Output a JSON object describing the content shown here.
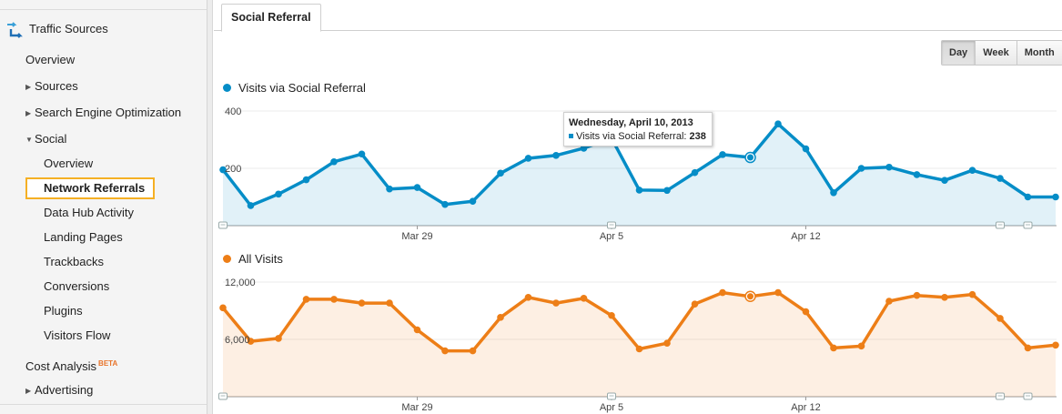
{
  "sidebar": {
    "section_title": "Traffic Sources",
    "items": [
      {
        "label": "Overview"
      },
      {
        "label": "Sources"
      },
      {
        "label": "Search Engine Optimization"
      },
      {
        "label": "Social"
      }
    ],
    "social_items": [
      {
        "label": "Overview"
      },
      {
        "label": "Network Referrals"
      },
      {
        "label": "Data Hub Activity"
      },
      {
        "label": "Landing Pages"
      },
      {
        "label": "Trackbacks"
      },
      {
        "label": "Conversions"
      },
      {
        "label": "Plugins"
      },
      {
        "label": "Visitors Flow"
      }
    ],
    "cost_analysis": {
      "label": "Cost Analysis",
      "badge": "BETA"
    },
    "advertising": {
      "label": "Advertising"
    }
  },
  "tabs": [
    {
      "label": "Social Referral"
    }
  ],
  "granularity": {
    "options": [
      "Day",
      "Week",
      "Month"
    ],
    "selected": "Day"
  },
  "tooltip": {
    "date": "Wednesday, April 10, 2013",
    "series": "Visits via Social Referral:",
    "value": "238"
  },
  "colors": {
    "blue": "#058dc7",
    "orange": "#ed7e17",
    "accent": "#f5b024"
  },
  "chart_data": [
    {
      "type": "area",
      "title": "Visits via Social Referral",
      "x_tick_labels": [
        "Mar 29",
        "Apr 5",
        "Apr 12"
      ],
      "y_tick_labels": [
        "400",
        "200"
      ],
      "ylim": [
        0,
        400
      ],
      "annotations_on_days": [
        0,
        14,
        28,
        29
      ],
      "highlight_index": 19,
      "values": [
        195,
        70,
        110,
        160,
        223,
        250,
        128,
        133,
        74,
        85,
        183,
        235,
        245,
        270,
        305,
        124,
        123,
        185,
        248,
        238,
        355,
        268,
        115,
        200,
        204,
        178,
        158,
        193,
        165,
        100,
        100
      ]
    },
    {
      "type": "area",
      "title": "All Visits",
      "x_tick_labels": [
        "Mar 29",
        "Apr 5",
        "Apr 12"
      ],
      "y_tick_labels": [
        "12,000",
        "6,000"
      ],
      "ylim": [
        0,
        12000
      ],
      "annotations_on_days": [
        0,
        14,
        28,
        29
      ],
      "highlight_index": 19,
      "values": [
        9300,
        5800,
        6100,
        10200,
        10200,
        9800,
        9800,
        7000,
        4800,
        4800,
        8300,
        10400,
        9800,
        10300,
        8500,
        5000,
        5600,
        9700,
        10900,
        10500,
        10900,
        8900,
        5100,
        5300,
        10000,
        10600,
        10400,
        10700,
        8200,
        5100,
        5400
      ]
    }
  ]
}
